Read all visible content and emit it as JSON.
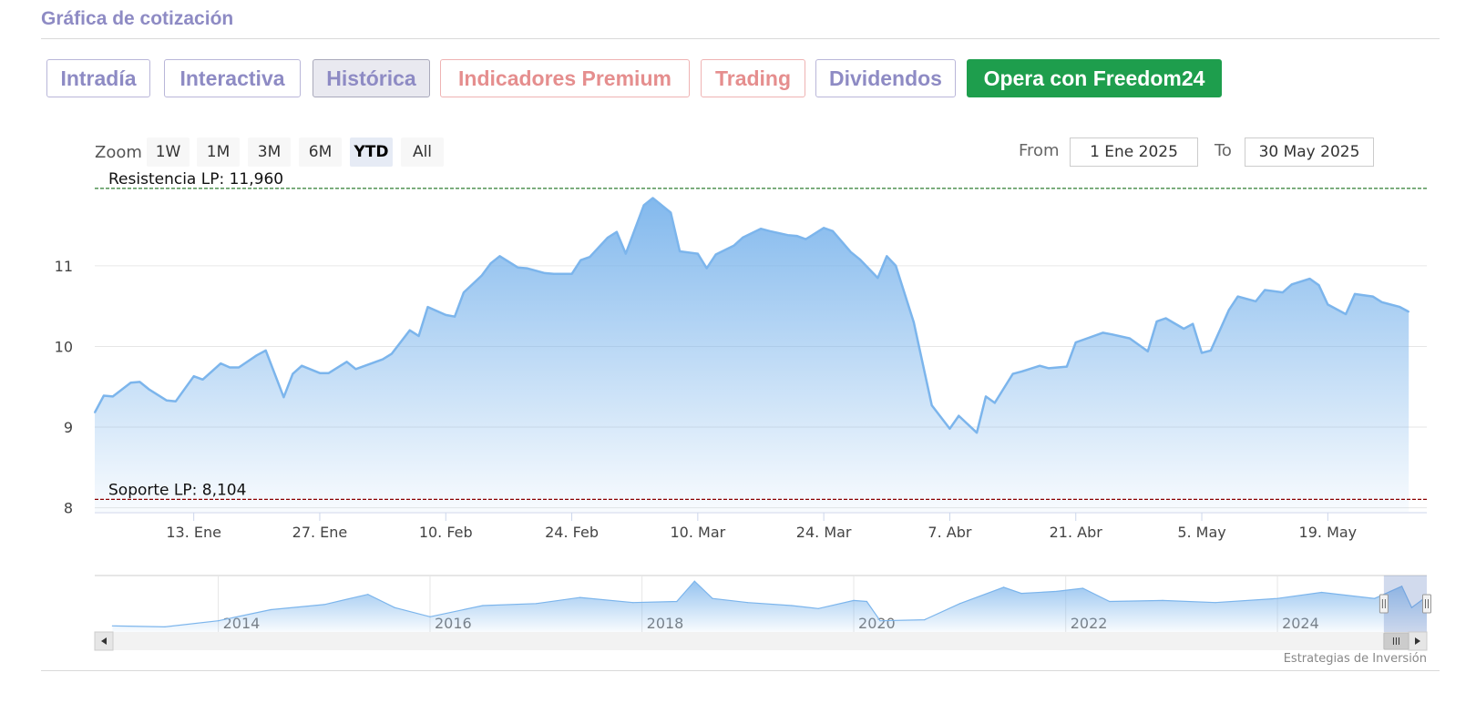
{
  "header": {
    "title": "Gráfica de cotización"
  },
  "tabs": [
    {
      "label": "Intradía",
      "style": "normal"
    },
    {
      "label": "Interactiva",
      "style": "normal"
    },
    {
      "label": "Histórica",
      "style": "active"
    },
    {
      "label": "Indicadores Premium",
      "style": "premium"
    },
    {
      "label": "Trading",
      "style": "premium"
    },
    {
      "label": "Dividendos",
      "style": "normal"
    },
    {
      "label": "Opera con Freedom24",
      "style": "cta"
    }
  ],
  "zoom": {
    "label": "Zoom",
    "buttons": [
      "1W",
      "1M",
      "3M",
      "6M",
      "YTD",
      "All"
    ],
    "active": "YTD"
  },
  "range": {
    "from_label": "From",
    "from_value": "1 Ene 2025",
    "to_label": "To",
    "to_value": "30 May 2025"
  },
  "credit": "Estrategias de Inversión",
  "colors": {
    "line": "#7cb5ec",
    "area_top": "#7cb5ec",
    "resistance": "#2e7d32",
    "support": "#8b0000",
    "brand": "#8e8bc4",
    "cta": "#1e9e4d"
  },
  "chart_data": {
    "type": "area",
    "title": "",
    "xlabel": "",
    "ylabel": "",
    "ylim": [
      7.95,
      11.97
    ],
    "yticks": [
      8,
      9,
      10,
      11
    ],
    "x_ticks": [
      {
        "label": "13. Ene",
        "date": "2025-01-13"
      },
      {
        "label": "27. Ene",
        "date": "2025-01-27"
      },
      {
        "label": "10. Feb",
        "date": "2025-02-10"
      },
      {
        "label": "24. Feb",
        "date": "2025-02-24"
      },
      {
        "label": "10. Mar",
        "date": "2025-03-10"
      },
      {
        "label": "24. Mar",
        "date": "2025-03-24"
      },
      {
        "label": "7. Abr",
        "date": "2025-04-07"
      },
      {
        "label": "21. Abr",
        "date": "2025-04-21"
      },
      {
        "label": "5. May",
        "date": "2025-05-05"
      },
      {
        "label": "19. May",
        "date": "2025-05-19"
      }
    ],
    "x_range": [
      "2025-01-02",
      "2025-05-30"
    ],
    "grid": true,
    "legend": "none",
    "reference_lines": [
      {
        "label": "Resistencia LP: 11,960",
        "value": 11.96,
        "style": "dashed"
      },
      {
        "label": "Soporte LP: 8,104",
        "value": 8.104,
        "style": "dashed"
      }
    ],
    "series": [
      {
        "points": [
          [
            "2025-01-02",
            9.18
          ],
          [
            "2025-01-03",
            9.39
          ],
          [
            "2025-01-04",
            9.38
          ],
          [
            "2025-01-06",
            9.55
          ],
          [
            "2025-01-07",
            9.56
          ],
          [
            "2025-01-08",
            9.47
          ],
          [
            "2025-01-10",
            9.33
          ],
          [
            "2025-01-11",
            9.32
          ],
          [
            "2025-01-13",
            9.63
          ],
          [
            "2025-01-14",
            9.59
          ],
          [
            "2025-01-16",
            9.79
          ],
          [
            "2025-01-17",
            9.74
          ],
          [
            "2025-01-18",
            9.74
          ],
          [
            "2025-01-20",
            9.89
          ],
          [
            "2025-01-21",
            9.95
          ],
          [
            "2025-01-23",
            9.37
          ],
          [
            "2025-01-24",
            9.66
          ],
          [
            "2025-01-25",
            9.76
          ],
          [
            "2025-01-27",
            9.67
          ],
          [
            "2025-01-28",
            9.67
          ],
          [
            "2025-01-30",
            9.81
          ],
          [
            "2025-01-31",
            9.72
          ],
          [
            "2025-02-03",
            9.84
          ],
          [
            "2025-02-04",
            9.91
          ],
          [
            "2025-02-06",
            10.2
          ],
          [
            "2025-02-07",
            10.13
          ],
          [
            "2025-02-08",
            10.49
          ],
          [
            "2025-02-10",
            10.39
          ],
          [
            "2025-02-11",
            10.37
          ],
          [
            "2025-02-12",
            10.67
          ],
          [
            "2025-02-14",
            10.88
          ],
          [
            "2025-02-15",
            11.03
          ],
          [
            "2025-02-16",
            11.12
          ],
          [
            "2025-02-18",
            10.98
          ],
          [
            "2025-02-19",
            10.97
          ],
          [
            "2025-02-21",
            10.91
          ],
          [
            "2025-02-22",
            10.9
          ],
          [
            "2025-02-24",
            10.9
          ],
          [
            "2025-02-25",
            11.07
          ],
          [
            "2025-02-26",
            11.11
          ],
          [
            "2025-02-28",
            11.35
          ],
          [
            "2025-03-01",
            11.42
          ],
          [
            "2025-03-02",
            11.15
          ],
          [
            "2025-03-04",
            11.75
          ],
          [
            "2025-03-05",
            11.84
          ],
          [
            "2025-03-07",
            11.66
          ],
          [
            "2025-03-08",
            11.18
          ],
          [
            "2025-03-10",
            11.15
          ],
          [
            "2025-03-11",
            10.97
          ],
          [
            "2025-03-12",
            11.14
          ],
          [
            "2025-03-14",
            11.25
          ],
          [
            "2025-03-15",
            11.35
          ],
          [
            "2025-03-17",
            11.46
          ],
          [
            "2025-03-18",
            11.43
          ],
          [
            "2025-03-20",
            11.38
          ],
          [
            "2025-03-21",
            11.37
          ],
          [
            "2025-03-22",
            11.33
          ],
          [
            "2025-03-24",
            11.47
          ],
          [
            "2025-03-25",
            11.43
          ],
          [
            "2025-03-27",
            11.17
          ],
          [
            "2025-03-28",
            11.08
          ],
          [
            "2025-03-30",
            10.85
          ],
          [
            "2025-03-31",
            11.12
          ],
          [
            "2025-04-01",
            11.0
          ],
          [
            "2025-04-03",
            10.3
          ],
          [
            "2025-04-05",
            9.27
          ],
          [
            "2025-04-07",
            8.98
          ],
          [
            "2025-04-08",
            9.14
          ],
          [
            "2025-04-10",
            8.93
          ],
          [
            "2025-04-11",
            9.38
          ],
          [
            "2025-04-12",
            9.3
          ],
          [
            "2025-04-14",
            9.66
          ],
          [
            "2025-04-15",
            9.69
          ],
          [
            "2025-04-17",
            9.76
          ],
          [
            "2025-04-18",
            9.73
          ],
          [
            "2025-04-20",
            9.75
          ],
          [
            "2025-04-21",
            10.05
          ],
          [
            "2025-04-22",
            10.09
          ],
          [
            "2025-04-24",
            10.17
          ],
          [
            "2025-04-25",
            10.15
          ],
          [
            "2025-04-27",
            10.1
          ],
          [
            "2025-04-29",
            9.94
          ],
          [
            "2025-04-30",
            10.31
          ],
          [
            "2025-05-01",
            10.35
          ],
          [
            "2025-05-03",
            10.22
          ],
          [
            "2025-05-04",
            10.28
          ],
          [
            "2025-05-05",
            9.92
          ],
          [
            "2025-05-06",
            9.95
          ],
          [
            "2025-05-08",
            10.45
          ],
          [
            "2025-05-09",
            10.62
          ],
          [
            "2025-05-11",
            10.56
          ],
          [
            "2025-05-12",
            10.7
          ],
          [
            "2025-05-14",
            10.67
          ],
          [
            "2025-05-15",
            10.77
          ],
          [
            "2025-05-17",
            10.84
          ],
          [
            "2025-05-18",
            10.76
          ],
          [
            "2025-05-19",
            10.52
          ],
          [
            "2025-05-21",
            10.4
          ],
          [
            "2025-05-22",
            10.65
          ],
          [
            "2025-05-24",
            10.62
          ],
          [
            "2025-05-25",
            10.55
          ],
          [
            "2025-05-27",
            10.49
          ],
          [
            "2025-05-28",
            10.43
          ]
        ]
      }
    ],
    "navigator": {
      "x_labels": [
        "2014",
        "2016",
        "2018",
        "2020",
        "2022",
        "2024"
      ],
      "x_range": [
        "2012-11-01",
        "2025-05-30"
      ],
      "selected_range": [
        "2025-01-02",
        "2025-05-30"
      ],
      "points": [
        [
          "2013-01-01",
          8.1
        ],
        [
          "2013-07-01",
          8.0
        ],
        [
          "2014-01-01",
          8.6
        ],
        [
          "2014-07-01",
          9.7
        ],
        [
          "2015-01-01",
          10.2
        ],
        [
          "2015-06-01",
          11.2
        ],
        [
          "2015-09-01",
          9.9
        ],
        [
          "2016-01-01",
          9.0
        ],
        [
          "2016-07-01",
          10.1
        ],
        [
          "2017-01-01",
          10.3
        ],
        [
          "2017-06-01",
          10.9
        ],
        [
          "2017-12-01",
          10.4
        ],
        [
          "2018-05-01",
          10.5
        ],
        [
          "2018-07-01",
          12.5
        ],
        [
          "2018-09-01",
          10.8
        ],
        [
          "2019-01-01",
          10.4
        ],
        [
          "2019-06-01",
          10.1
        ],
        [
          "2019-09-01",
          9.8
        ],
        [
          "2020-01-01",
          10.6
        ],
        [
          "2020-02-15",
          10.5
        ],
        [
          "2020-04-01",
          8.6
        ],
        [
          "2020-09-01",
          8.7
        ],
        [
          "2021-01-01",
          10.3
        ],
        [
          "2021-06-01",
          11.9
        ],
        [
          "2021-08-01",
          11.3
        ],
        [
          "2021-12-01",
          11.5
        ],
        [
          "2022-03-01",
          11.8
        ],
        [
          "2022-06-01",
          10.5
        ],
        [
          "2022-12-01",
          10.6
        ],
        [
          "2023-06-01",
          10.4
        ],
        [
          "2024-01-01",
          10.8
        ],
        [
          "2024-06-01",
          11.4
        ],
        [
          "2024-12-01",
          10.8
        ],
        [
          "2025-03-05",
          12.0
        ],
        [
          "2025-04-08",
          9.9
        ],
        [
          "2025-05-30",
          11.0
        ]
      ]
    }
  }
}
